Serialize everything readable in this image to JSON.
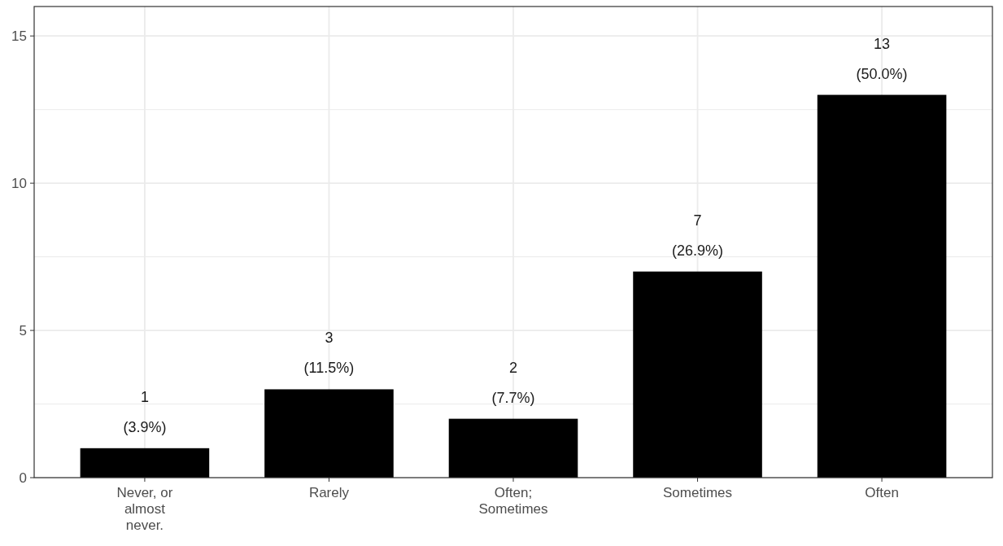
{
  "chart_data": {
    "type": "bar",
    "categories": [
      "Never, or almost never.",
      "Rarely",
      "Often; Sometimes",
      "Sometimes",
      "Often"
    ],
    "values": [
      1,
      3,
      2,
      7,
      13
    ],
    "value_labels": [
      "1\n(3.9%)",
      "3\n(11.5%)",
      "2\n(7.7%)",
      "7\n(26.9%)",
      "13\n(50.0%)"
    ],
    "color": "#000000",
    "ylim": [
      0,
      16
    ],
    "yticks": [
      0,
      {
        "value": 2.5,
        "label": null
      },
      5,
      {
        "value": 7.5,
        "label": null
      },
      10,
      {
        "value": 12.5,
        "label": null
      },
      15
    ],
    "grid": true
  }
}
